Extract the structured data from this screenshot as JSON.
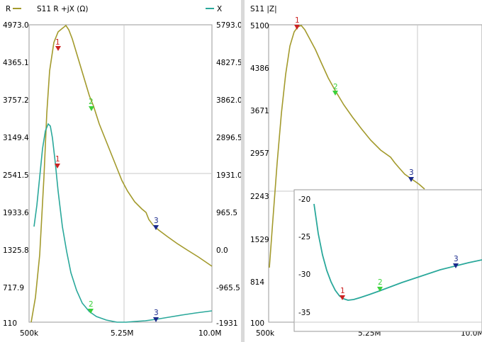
{
  "colors": {
    "r_trace": "#a39a2c",
    "x_trace": "#2aa89b",
    "marker1": "#cc2222",
    "marker2": "#3ad13a",
    "marker3": "#1a2a8c"
  },
  "left": {
    "legend_r": "R",
    "title": "S11 R +jX (Ω)",
    "legend_x": "X",
    "y_left_ticks": [
      "4973.0",
      "4365.1",
      "3757.2",
      "3149.4",
      "2541.5",
      "1933.6",
      "1325.8",
      "717.9",
      "110"
    ],
    "y_right_ticks": [
      "5793.0",
      "4827.5",
      "3862.0",
      "2896.5",
      "1931.0",
      "965.5",
      "0.0",
      "-965.5",
      "-1931"
    ],
    "x_ticks": [
      "500k",
      "5.25M",
      "10.0M"
    ],
    "markers_r": [
      "1",
      "2",
      "3"
    ],
    "markers_x": [
      "1",
      "2",
      "3"
    ]
  },
  "right": {
    "title": "S11 |Z|",
    "y_ticks": [
      "5100",
      "4386",
      "3671",
      "2957",
      "2243",
      "1529",
      "814",
      "100"
    ],
    "x_ticks": [
      "500k",
      "5.25M",
      "10.0M"
    ],
    "markers": [
      "1",
      "2",
      "3"
    ],
    "inset": {
      "y_ticks": [
        "-20",
        "-25",
        "-30",
        "-35"
      ],
      "markers": [
        "1",
        "2",
        "3"
      ]
    }
  },
  "chart_data": [
    {
      "type": "line",
      "title": "S11 R +jX (Ω)",
      "x": [
        0.5,
        1.0,
        1.5,
        2.0,
        2.5,
        3.0,
        3.5,
        4.0,
        4.5,
        5.25,
        6.0,
        7.0,
        8.0,
        9.0,
        10.0
      ],
      "series": [
        {
          "name": "R",
          "values": [
            110,
            1500,
            3800,
            4900,
            4700,
            4300,
            3800,
            3300,
            2900,
            2500,
            2150,
            1750,
            1500,
            1300,
            1150
          ]
        },
        {
          "name": "X",
          "values": [
            -1100,
            400,
            2950,
            1500,
            -300,
            -1100,
            -1500,
            -1700,
            -1800,
            -1880,
            -1880,
            -1860,
            -1820,
            -1780,
            -1730
          ]
        }
      ],
      "ylim_left": [
        110,
        4973
      ],
      "ylim_right": [
        -1931,
        5793
      ],
      "xlim": [
        0.5,
        10.0
      ],
      "grid": true
    },
    {
      "type": "line",
      "title": "S11 |Z|",
      "x": [
        0.5,
        1.0,
        1.5,
        2.0,
        2.5,
        3.0,
        3.5,
        4.0,
        4.5,
        5.25,
        6.0,
        6.5,
        7.0
      ],
      "series": [
        {
          "name": "|Z|",
          "values": [
            1050,
            3300,
            4900,
            5050,
            4700,
            4350,
            4000,
            3700,
            3450,
            3150,
            2850,
            2500,
            2300
          ]
        }
      ],
      "ylim": [
        100,
        5100
      ],
      "xlim": [
        0.5,
        10.0
      ],
      "grid": true
    },
    {
      "type": "line",
      "x": [
        2.0,
        2.5,
        3.0,
        3.5,
        4.0,
        5.25,
        6.5,
        8.0,
        10.0
      ],
      "series": [
        {
          "values": [
            -20.5,
            -29.5,
            -33.2,
            -33.5,
            -33.0,
            -31.8,
            -30.5,
            -29.0,
            -27.6
          ]
        }
      ],
      "ylim": [
        -36,
        -19
      ],
      "xlim": [
        0.5,
        10.0
      ],
      "grid": true
    }
  ]
}
